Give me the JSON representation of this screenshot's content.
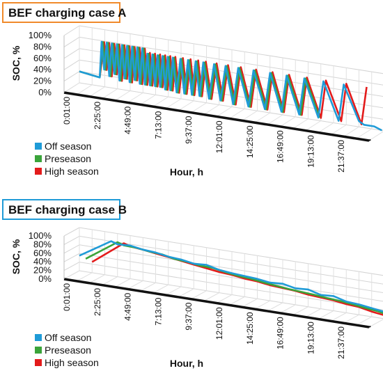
{
  "colors": {
    "off_season": "#1f9bd7",
    "preseason": "#3aa43a",
    "high_season": "#e31b1b",
    "title_a_border": "#f08a2a",
    "title_b_border": "#1f9bd7"
  },
  "chart_data": [
    {
      "type": "line",
      "title": "BEF charging case A",
      "xlabel": "Hour, h",
      "ylabel": "SOC, %",
      "ylim": [
        0,
        100
      ],
      "yticks": [
        "100%",
        "80%",
        "60%",
        "40%",
        "20%",
        "0%"
      ],
      "xticks": [
        "0:01:00",
        "2:25:00",
        "4:49:00",
        "7:13:00",
        "9:37:00",
        "12:01:00",
        "14:25:00",
        "16:49:00",
        "19:13:00",
        "21:37:00"
      ],
      "xlim": [
        0,
        24
      ],
      "grid": true,
      "legend_position": "bottom-left",
      "series": [
        {
          "name": "Off season",
          "color": "#1f9bd7",
          "x": [
            0.0,
            1.6,
            1.75,
            1.95,
            2.15,
            2.35,
            2.55,
            2.75,
            2.95,
            3.15,
            3.35,
            3.55,
            3.75,
            3.95,
            4.15,
            4.35,
            4.55,
            4.75,
            4.95,
            5.15,
            5.35,
            5.55,
            5.75,
            5.95,
            6.15,
            6.35,
            6.55,
            6.75,
            6.95,
            7.15,
            7.35,
            7.65,
            7.95,
            8.25,
            8.55,
            8.85,
            9.15,
            9.45,
            9.75,
            10.2,
            10.6,
            11.1,
            11.5,
            12.1,
            12.5,
            13.3,
            13.7,
            14.6,
            15.0,
            15.9,
            16.3,
            17.3,
            17.7,
            18.8,
            19.2,
            20.4,
            20.8,
            22.0,
            22.4,
            23.2,
            23.8
          ],
          "y": [
            20,
            15,
            78,
            30,
            78,
            20,
            78,
            25,
            78,
            15,
            78,
            20,
            78,
            15,
            78,
            20,
            78,
            15,
            78,
            15,
            70,
            15,
            70,
            15,
            70,
            15,
            70,
            12,
            70,
            12,
            70,
            10,
            70,
            10,
            70,
            10,
            70,
            10,
            70,
            8,
            70,
            8,
            70,
            5,
            70,
            5,
            70,
            5,
            70,
            5,
            70,
            5,
            70,
            5,
            70,
            5,
            70,
            10,
            5,
            5,
            0
          ]
        },
        {
          "name": "Preseason",
          "color": "#3aa43a",
          "x": [
            0.0,
            1.6,
            1.85,
            2.05,
            2.25,
            2.45,
            2.65,
            2.85,
            3.05,
            3.25,
            3.45,
            3.65,
            3.85,
            4.05,
            4.25,
            4.45,
            4.65,
            4.85,
            5.05,
            5.25,
            5.45,
            5.65,
            5.85,
            6.05,
            6.25,
            6.45,
            6.65,
            6.85,
            7.05,
            7.25,
            7.45,
            7.75,
            8.05,
            8.35,
            8.65,
            8.95,
            9.25,
            9.55,
            9.85,
            10.3,
            10.7,
            11.2,
            11.6,
            12.2,
            12.6,
            13.4,
            13.8,
            14.7,
            15.1,
            16.0,
            16.4,
            17.4,
            17.8,
            18.9
          ],
          "y": [
            20,
            15,
            78,
            30,
            78,
            20,
            78,
            25,
            78,
            15,
            78,
            20,
            78,
            15,
            78,
            20,
            78,
            15,
            78,
            15,
            70,
            15,
            70,
            15,
            70,
            15,
            70,
            12,
            70,
            12,
            70,
            10,
            70,
            10,
            70,
            10,
            70,
            10,
            70,
            8,
            70,
            8,
            70,
            5,
            70,
            5,
            70,
            5,
            70,
            5,
            70,
            5,
            70,
            5
          ]
        },
        {
          "name": "High season",
          "color": "#e31b1b",
          "x": [
            1.6,
            1.95,
            2.15,
            2.35,
            2.55,
            2.75,
            2.95,
            3.15,
            3.35,
            3.55,
            3.75,
            3.95,
            4.15,
            4.35,
            4.55,
            4.75,
            4.95,
            5.15,
            5.35,
            5.55,
            5.75,
            5.95,
            6.15,
            6.35,
            6.55,
            6.75,
            6.95,
            7.15,
            7.35,
            7.55,
            7.85,
            8.15,
            8.45,
            8.75,
            9.05,
            9.35,
            9.65,
            9.95,
            10.4,
            10.8,
            11.3,
            11.7,
            12.3,
            12.7,
            13.5,
            13.9,
            14.8,
            15.2,
            16.1,
            16.5,
            17.5,
            17.9,
            19.0,
            19.4,
            20.6,
            21.0,
            22.2,
            22.6
          ],
          "y": [
            15,
            78,
            30,
            78,
            20,
            78,
            25,
            78,
            15,
            78,
            20,
            78,
            15,
            78,
            20,
            78,
            15,
            78,
            15,
            72,
            15,
            72,
            15,
            72,
            15,
            72,
            12,
            72,
            12,
            72,
            10,
            72,
            10,
            72,
            10,
            72,
            10,
            72,
            8,
            72,
            8,
            72,
            5,
            72,
            5,
            72,
            5,
            72,
            5,
            72,
            5,
            72,
            5,
            72,
            5,
            72,
            5,
            72
          ]
        }
      ]
    },
    {
      "type": "line",
      "title": "BEF charging case B",
      "xlabel": "Hour, h",
      "ylabel": "SOC, %",
      "ylim": [
        0,
        100
      ],
      "yticks": [
        "100%",
        "80%",
        "60%",
        "40%",
        "20%",
        "0%"
      ],
      "xticks": [
        "0:01:00",
        "2:25:00",
        "4:49:00",
        "7:13:00",
        "9:37:00",
        "12:01:00",
        "14:25:00",
        "16:49:00",
        "19:13:00",
        "21:37:00"
      ],
      "xlim": [
        0,
        24
      ],
      "grid": true,
      "legend_position": "bottom-left",
      "series": [
        {
          "name": "Off season",
          "color": "#1f9bd7",
          "x": [
            0.0,
            2.5,
            3.0,
            4.0,
            5.0,
            6.0,
            7.0,
            8.0,
            9.0,
            10.0,
            11.0,
            12.0,
            13.0,
            14.0,
            15.0,
            16.0,
            17.0,
            18.0,
            19.0,
            20.0,
            21.0,
            22.0,
            23.0,
            24.0
          ],
          "y": [
            35,
            80,
            75,
            77,
            72,
            70,
            65,
            63,
            58,
            60,
            53,
            50,
            48,
            46,
            42,
            44,
            38,
            40,
            32,
            34,
            26,
            24,
            20,
            16
          ]
        },
        {
          "name": "Preseason",
          "color": "#3aa43a",
          "x": [
            0.5,
            3.0,
            3.5,
            4.5,
            5.5,
            6.5,
            7.5,
            8.5,
            9.5,
            10.5,
            11.5,
            12.5,
            13.5,
            14.5,
            15.5,
            16.5,
            17.5,
            18.5,
            19.5,
            20.5,
            21.5,
            22.5,
            23.5,
            24.0
          ],
          "y": [
            30,
            80,
            75,
            74,
            70,
            68,
            62,
            60,
            56,
            55,
            50,
            46,
            44,
            40,
            37,
            34,
            32,
            30,
            27,
            25,
            22,
            18,
            15,
            12
          ]
        },
        {
          "name": "High season",
          "color": "#e31b1b",
          "x": [
            1.0,
            3.5,
            4.0,
            5.0,
            6.0,
            7.0,
            8.0,
            9.0,
            10.0,
            11.0,
            12.0,
            13.0,
            14.0,
            15.0,
            16.0,
            17.0,
            18.0,
            19.0,
            20.0,
            21.0,
            22.0,
            23.0,
            24.0
          ],
          "y": [
            25,
            80,
            75,
            72,
            68,
            64,
            60,
            56,
            52,
            48,
            46,
            42,
            40,
            36,
            34,
            32,
            28,
            26,
            24,
            20,
            18,
            12,
            8
          ]
        }
      ]
    }
  ]
}
